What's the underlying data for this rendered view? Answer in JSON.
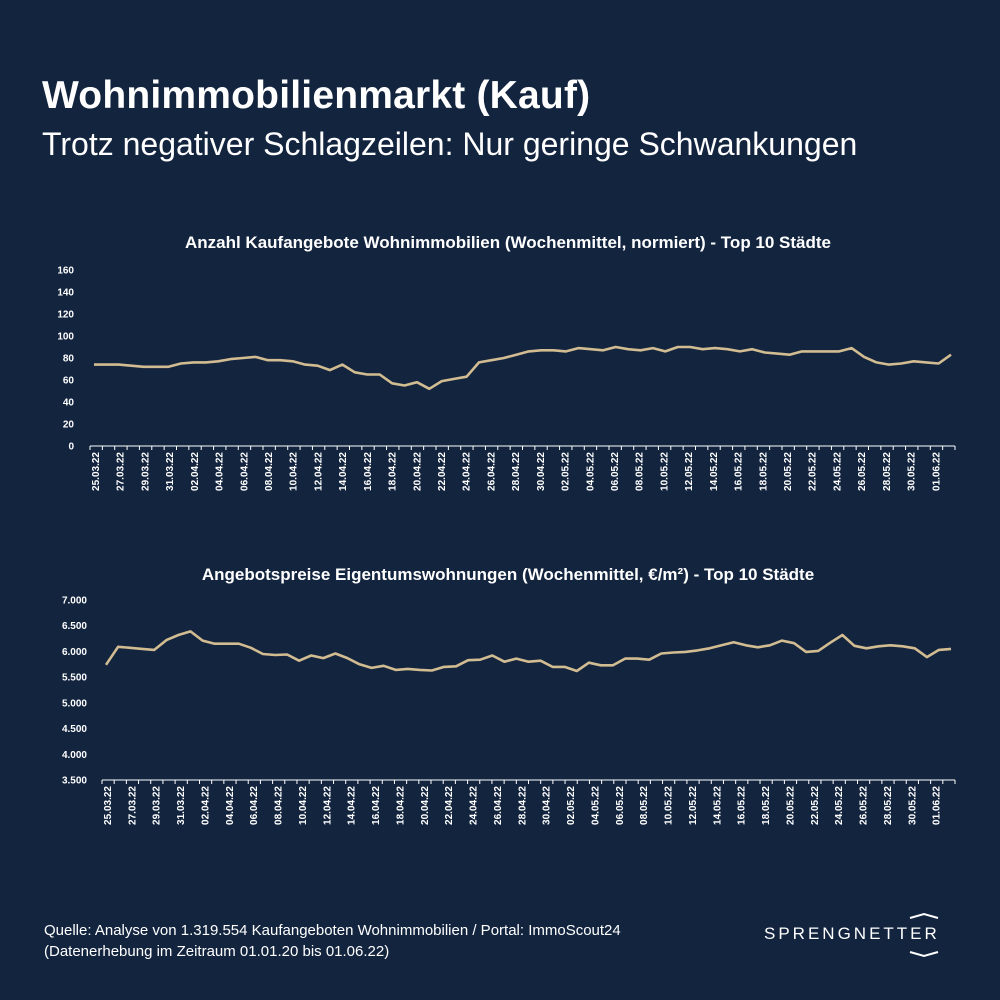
{
  "header": {
    "title": "Wohnimmobilienmarkt (Kauf)",
    "subtitle": "Trotz negativer Schlagzeilen: Nur geringe Schwankungen"
  },
  "colors": {
    "background": "#13243f",
    "line": "#d2bc91",
    "text": "#ffffff"
  },
  "chart_data": [
    {
      "type": "line",
      "title": "Anzahl Kaufangebote Wohnimmobilien (Wochenmittel, normiert) - Top 10 Städte",
      "ylim": [
        0,
        160
      ],
      "yticks": [
        "160",
        "140",
        "120",
        "100",
        "80",
        "60",
        "40",
        "20",
        "0"
      ],
      "ytick_values": [
        160,
        140,
        120,
        100,
        80,
        60,
        40,
        20,
        0
      ],
      "x_labels": [
        "25.03.22",
        "27.03.22",
        "29.03.22",
        "31.03.22",
        "02.04.22",
        "04.04.22",
        "06.04.22",
        "08.04.22",
        "10.04.22",
        "12.04.22",
        "14.04.22",
        "16.04.22",
        "18.04.22",
        "20.04.22",
        "22.04.22",
        "24.04.22",
        "26.04.22",
        "28.04.22",
        "30.04.22",
        "02.05.22",
        "04.05.22",
        "06.05.22",
        "08.05.22",
        "10.05.22",
        "12.05.22",
        "14.05.22",
        "16.05.22",
        "18.05.22",
        "20.05.22",
        "22.05.22",
        "24.05.22",
        "26.05.22",
        "28.05.22",
        "30.05.22",
        "01.06.22"
      ],
      "values": [
        74,
        74,
        74,
        73,
        72,
        72,
        72,
        75,
        76,
        76,
        77,
        79,
        80,
        81,
        78,
        78,
        77,
        74,
        73,
        69,
        74,
        67,
        65,
        65,
        57,
        55,
        58,
        52,
        59,
        61,
        63,
        76,
        78,
        80,
        83,
        86,
        87,
        87,
        86,
        89,
        88,
        87,
        90,
        88,
        87,
        89,
        86,
        90,
        90,
        88,
        89,
        88,
        86,
        88,
        85,
        84,
        83,
        86,
        86,
        86,
        86,
        89,
        81,
        76,
        74,
        75,
        77,
        76,
        75,
        83
      ]
    },
    {
      "type": "line",
      "title": "Angebotspreise Eigentumswohnungen (Wochenmittel, €/m²) - Top 10 Städte",
      "ylim": [
        3500,
        7000
      ],
      "yticks": [
        "7.000",
        "6.500",
        "6.000",
        "5.500",
        "5.000",
        "4.500",
        "4.000",
        "3.500"
      ],
      "ytick_values": [
        7000,
        6500,
        6000,
        5500,
        5000,
        4500,
        4000,
        3500
      ],
      "x_labels": [
        "25.03.22",
        "27.03.22",
        "29.03.22",
        "31.03.22",
        "02.04.22",
        "04.04.22",
        "06.04.22",
        "08.04.22",
        "10.04.22",
        "12.04.22",
        "14.04.22",
        "16.04.22",
        "18.04.22",
        "20.04.22",
        "22.04.22",
        "24.04.22",
        "26.04.22",
        "28.04.22",
        "30.04.22",
        "02.05.22",
        "04.05.22",
        "06.05.22",
        "08.05.22",
        "10.05.22",
        "12.05.22",
        "14.05.22",
        "16.05.22",
        "18.05.22",
        "20.05.22",
        "22.05.22",
        "24.05.22",
        "26.05.22",
        "28.05.22",
        "30.05.22",
        "01.06.22"
      ],
      "values": [
        5740,
        6090,
        6070,
        6050,
        6030,
        6220,
        6320,
        6390,
        6210,
        6150,
        6150,
        6150,
        6070,
        5950,
        5930,
        5940,
        5820,
        5920,
        5870,
        5960,
        5870,
        5750,
        5680,
        5720,
        5640,
        5660,
        5640,
        5630,
        5700,
        5710,
        5830,
        5840,
        5920,
        5800,
        5860,
        5800,
        5820,
        5700,
        5700,
        5620,
        5780,
        5730,
        5730,
        5860,
        5860,
        5840,
        5960,
        5980,
        5990,
        6020,
        6060,
        6120,
        6180,
        6120,
        6080,
        6120,
        6210,
        6160,
        5990,
        6010,
        6170,
        6320,
        6110,
        6060,
        6100,
        6120,
        6100,
        6060,
        5890,
        6030,
        6050
      ]
    }
  ],
  "footer": {
    "source_line1": "Quelle: Analyse von 1.319.554 Kaufangeboten Wohnimmobilien / Portal: ImmoScout24",
    "source_line2": "(Datenerhebung im Zeitraum  01.01.20 bis 01.06.22)",
    "logo_text": "SPRENGNETTER"
  }
}
